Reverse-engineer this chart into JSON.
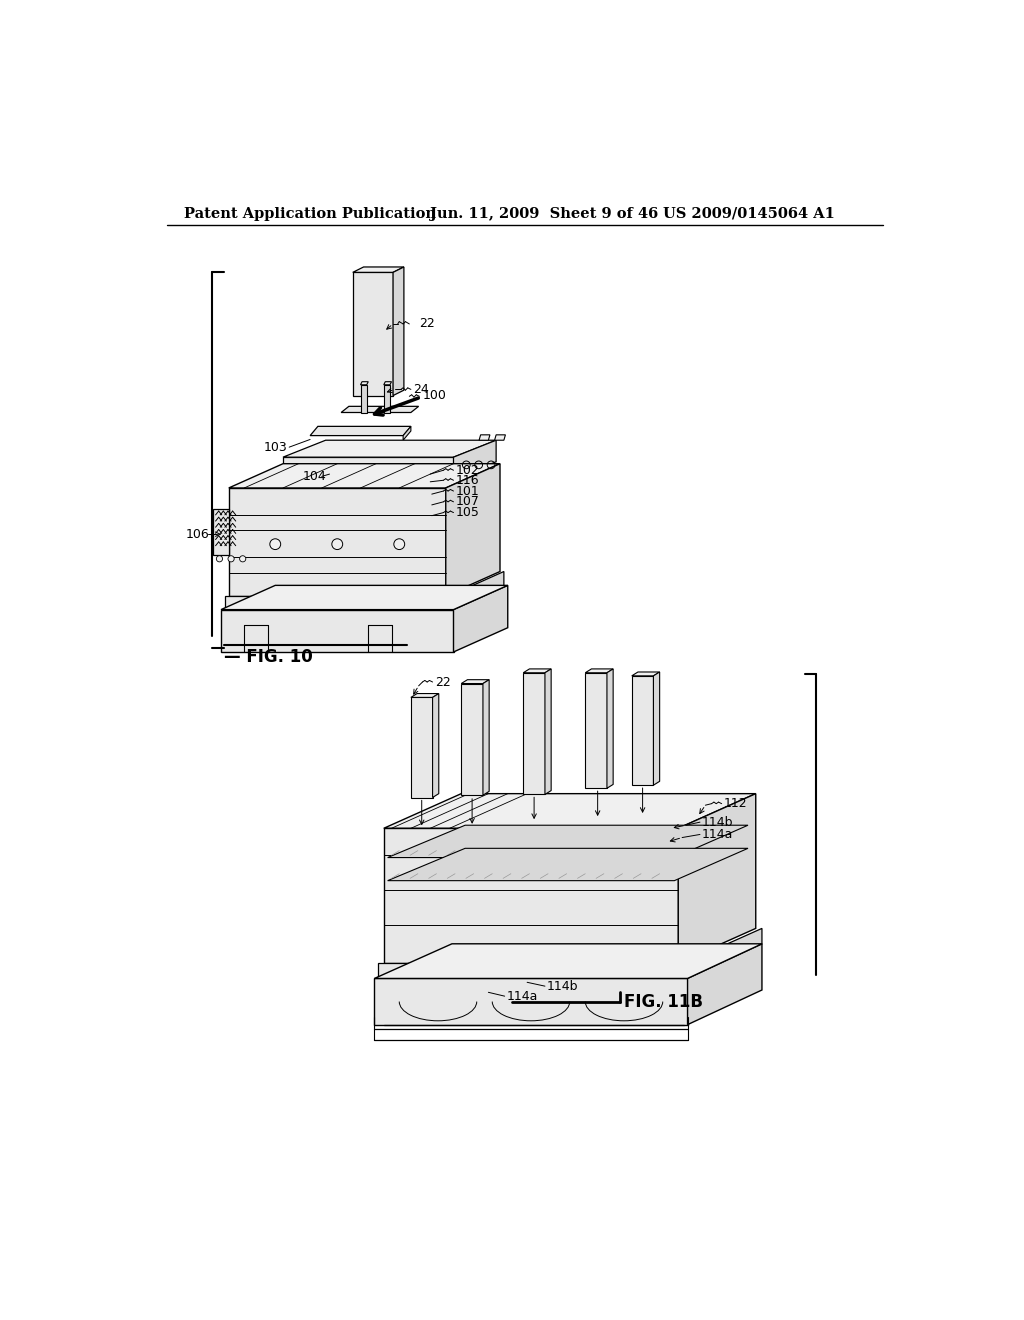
{
  "background_color": "#ffffff",
  "header_left": "Patent Application Publication",
  "header_center": "Jun. 11, 2009  Sheet 9 of 46",
  "header_right": "US 2009/0145064 A1",
  "header_fontsize": 10.5,
  "fig10_label": "FIG. 10",
  "fig11b_label": "FIG. 11B",
  "text_color": "#000000",
  "line_color": "#000000",
  "very_light_gray": "#f0f0f0",
  "light_gray": "#e8e8e8",
  "medium_gray": "#d8d8d8",
  "dot_fill": "#cccccc"
}
